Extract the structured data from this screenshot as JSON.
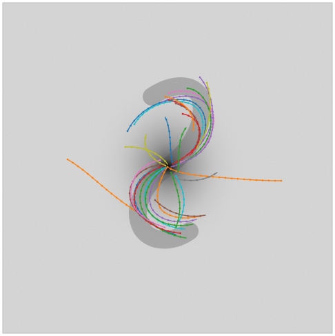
{
  "image": {
    "subject": "spiral-galaxy-with-arm-tracings",
    "background_color": "#d9d9d9",
    "core_color": "#1a1a1a",
    "palette": [
      "#1f77b4",
      "#ff7f0e",
      "#2ca02c",
      "#d62728",
      "#9467bd",
      "#8c564b",
      "#e377c2",
      "#7f7f7f",
      "#bcbd22",
      "#17becf"
    ]
  }
}
